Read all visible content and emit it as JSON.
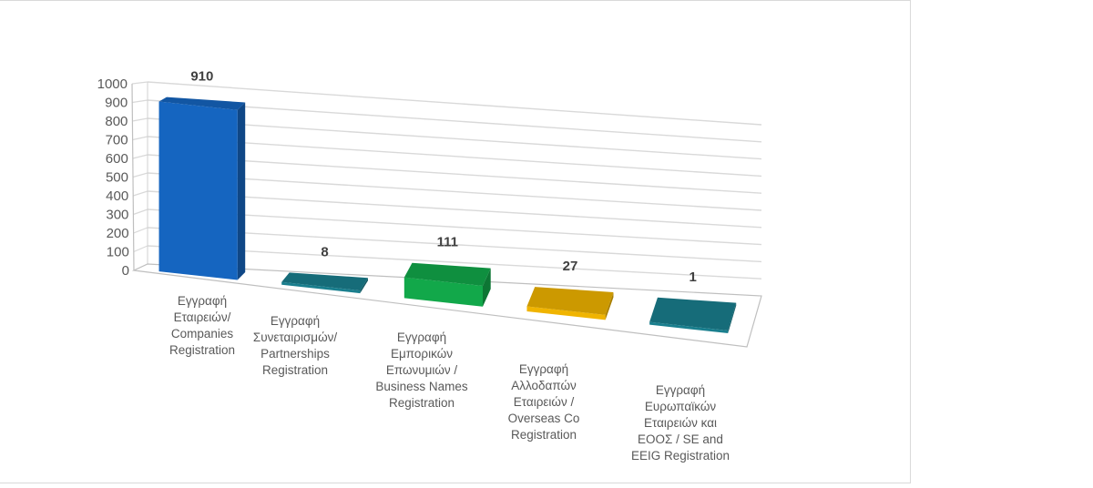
{
  "chart_data": {
    "type": "bar",
    "style": "3d-column",
    "title": "",
    "xlabel": "",
    "ylabel": "",
    "ylim": [
      0,
      1000
    ],
    "yticks": [
      0,
      100,
      200,
      300,
      400,
      500,
      600,
      700,
      800,
      900,
      1000
    ],
    "grid": true,
    "legend": "none",
    "categories": [
      [
        "Εγγραφή",
        "Εταιρειών/",
        "Companies",
        "Registration"
      ],
      [
        "Εγγραφή",
        "Συνεταιρισμών/",
        "Partnerships",
        "Registration"
      ],
      [
        "Εγγραφή",
        "Εμπορικών",
        "Επωνυμιών /",
        "Business Names",
        "Registration"
      ],
      [
        "Εγγραφή",
        "Αλλοδαπών",
        "Εταιρειών /",
        "Overseas Co",
        "Registration"
      ],
      [
        "Εγγραφή",
        "Ευρωπαϊκών",
        "Εταιρειών και",
        "ΕΟΟΣ / SE and",
        "EEIG Registration"
      ]
    ],
    "category_names": [
      "Εγγραφή Εταιρειών/ Companies Registration",
      "Εγγραφή Συνεταιρισμών/ Partnerships Registration",
      "Εγγραφή Εμπορικών Επωνυμιών / Business Names Registration",
      "Εγγραφή Αλλοδαπών Εταιρειών / Overseas Co Registration",
      "Εγγραφή Ευρωπαϊκών Εταιρειών και ΕΟΟΣ / SE and EEIG Registration"
    ],
    "values": [
      910,
      8,
      111,
      27,
      1
    ],
    "data_labels": [
      "910",
      "8",
      "111",
      "27",
      "1"
    ],
    "colors": [
      "#1565c0",
      "#1a7f8e",
      "#12a84a",
      "#f0b400",
      "#1a7f8e"
    ]
  }
}
